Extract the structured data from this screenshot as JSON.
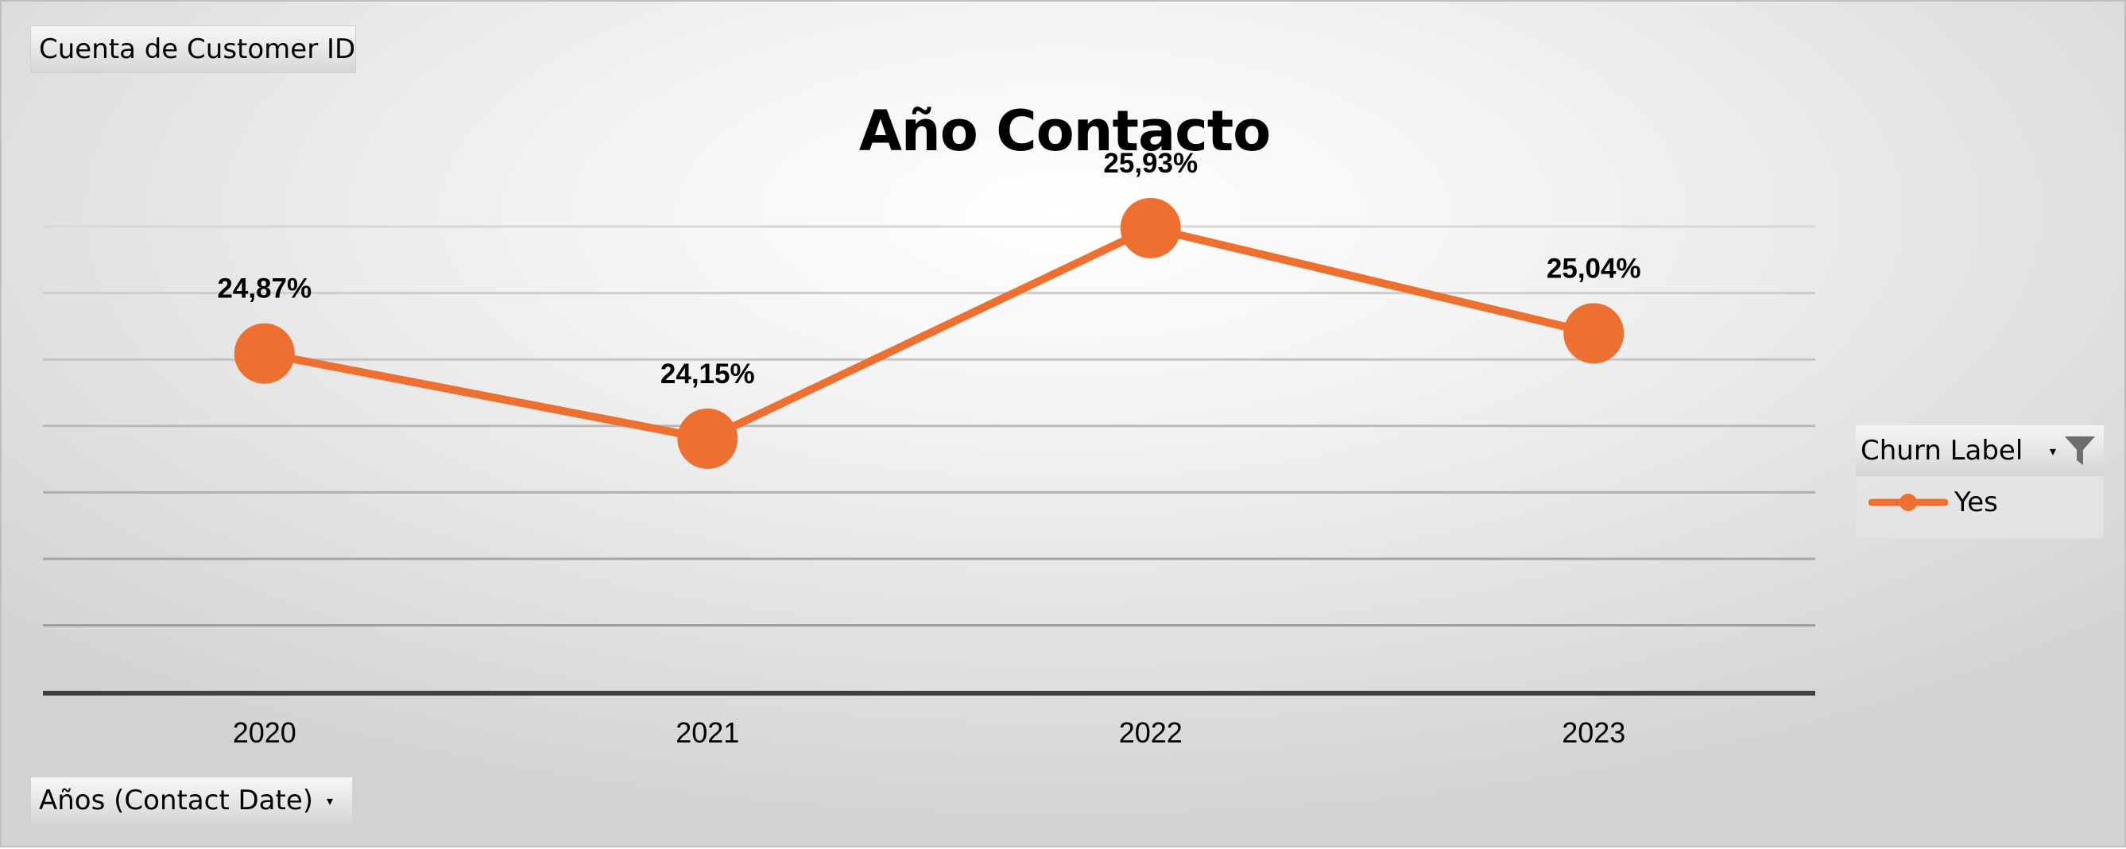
{
  "pivot": {
    "value_field": "Cuenta de Customer ID",
    "axis_field": "Años (Contact Date)",
    "legend_field": "Churn Label"
  },
  "colors": {
    "series": "#ED7031",
    "gridline": "#c8c8c8",
    "axis_line": "#404040"
  },
  "icons": {
    "filter": "filter-icon",
    "dropdown": "chevron-down-icon"
  },
  "chart_data": {
    "type": "line",
    "title": "Año Contacto",
    "xlabel": "",
    "ylabel": "",
    "categories": [
      "2020",
      "2021",
      "2022",
      "2023"
    ],
    "series": [
      {
        "name": "Yes",
        "values": [
          24.87,
          24.15,
          25.93,
          25.04
        ],
        "labels": [
          "24,87%",
          "24,15%",
          "25,93%",
          "25,04%"
        ]
      }
    ],
    "ylim": [
      22.0,
      26.5
    ],
    "grid": true,
    "legend": "right"
  }
}
